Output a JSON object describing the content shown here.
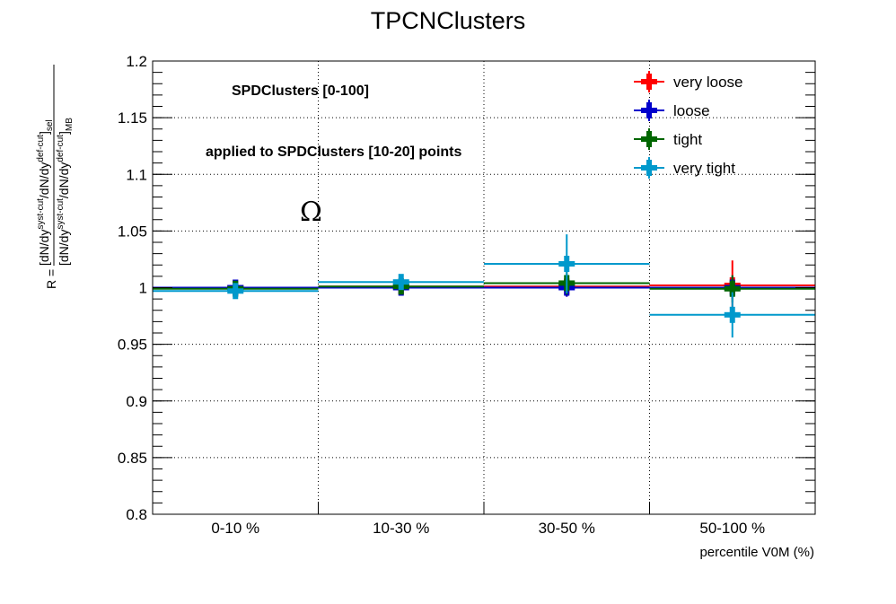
{
  "chart_data": {
    "type": "scatter",
    "title": "TPCNClusters",
    "xlabel": "percentile V0M (%)",
    "ylabel": {
      "prefix": "R = ",
      "numerator": [
        "[dN/dy",
        "syst-cut",
        "/dN/dy",
        "def-cut",
        "]",
        "sel"
      ],
      "denominator": [
        "[dN/dy",
        "syst-cut",
        "/dN/dy",
        "def-cut",
        "]",
        "MB"
      ]
    },
    "categories": [
      "0-10 %",
      "10-30 %",
      "30-50 %",
      "50-100 %"
    ],
    "ylim": [
      0.8,
      1.2
    ],
    "yticks": [
      "0.8",
      "0.85",
      "0.9",
      "0.95",
      "1",
      "1.05",
      "1.1",
      "1.15",
      "1.2"
    ],
    "grid": true,
    "legend_position": "top-right",
    "annotations": [
      "SPDClusters [0-100]",
      "applied to SPDClusters [10-20] points",
      "Ω"
    ],
    "series": [
      {
        "name": "very loose",
        "color": "#ff0000",
        "values": [
          1.0,
          1.001,
          1.001,
          1.002
        ],
        "errors": [
          0.003,
          0.004,
          0.009,
          0.022
        ]
      },
      {
        "name": "loose",
        "color": "#0000cc",
        "values": [
          1.0,
          1.0,
          1.0,
          1.0
        ],
        "errors": [
          0.003,
          0.004,
          0.008,
          0.01
        ]
      },
      {
        "name": "tight",
        "color": "#006600",
        "values": [
          0.999,
          1.001,
          1.004,
          0.999
        ],
        "errors": [
          0.003,
          0.004,
          0.01,
          0.012
        ]
      },
      {
        "name": "very tight",
        "color": "#0099cc",
        "values": [
          0.997,
          1.005,
          1.021,
          0.976
        ],
        "errors": [
          0.006,
          0.006,
          0.026,
          0.02
        ]
      }
    ]
  }
}
